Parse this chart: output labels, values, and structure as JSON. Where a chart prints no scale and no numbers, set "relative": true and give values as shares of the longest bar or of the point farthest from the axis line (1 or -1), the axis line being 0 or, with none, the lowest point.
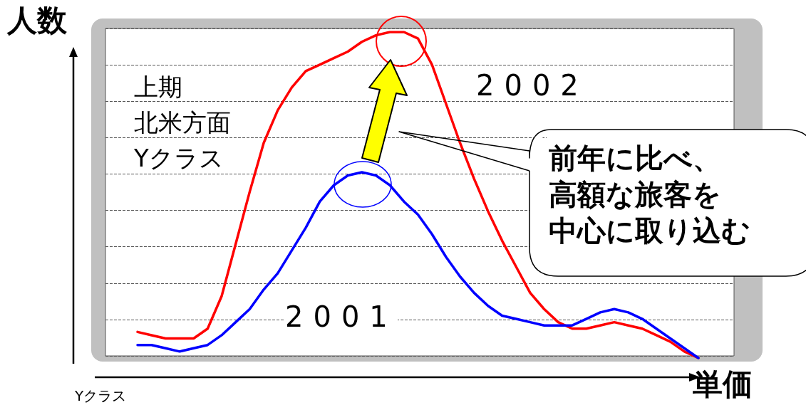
{
  "chart_data": {
    "type": "line",
    "relative": true,
    "xlabel": "単価",
    "ylabel": "人数",
    "grid": "y",
    "marker": "none",
    "line_style": "solid",
    "categories": [
      null,
      null,
      null,
      null,
      null,
      null,
      null,
      null,
      null,
      null,
      null,
      null,
      null,
      null,
      null,
      null,
      null,
      null,
      null,
      null,
      null,
      null,
      null,
      null,
      null,
      null,
      null,
      null,
      null,
      null,
      null,
      null,
      null,
      null,
      null,
      null,
      null,
      null,
      null,
      null,
      null
    ],
    "series": [
      {
        "name": "2002",
        "color": "#ff0000",
        "values": [
          0.08,
          0.07,
          0.06,
          0.06,
          0.06,
          0.09,
          0.19,
          0.35,
          0.51,
          0.66,
          0.76,
          0.83,
          0.88,
          0.9,
          0.92,
          0.94,
          0.97,
          0.99,
          1,
          1,
          0.98,
          0.9,
          0.78,
          0.66,
          0.55,
          0.45,
          0.36,
          0.28,
          0.2,
          0.15,
          0.11,
          0.09,
          0.09,
          0.1,
          0.11,
          0.1,
          0.09,
          0.07,
          0.05,
          0.02,
          0
        ]
      },
      {
        "name": "2001",
        "color": "#0000ff",
        "values": [
          0.04,
          0.04,
          0.03,
          0.02,
          0.03,
          0.04,
          0.07,
          0.11,
          0.15,
          0.21,
          0.26,
          0.33,
          0.4,
          0.48,
          0.53,
          0.56,
          0.57,
          0.56,
          0.53,
          0.48,
          0.44,
          0.38,
          0.31,
          0.25,
          0.2,
          0.16,
          0.13,
          0.12,
          0.11,
          0.1,
          0.1,
          0.1,
          0.12,
          0.14,
          0.15,
          0.14,
          0.12,
          0.09,
          0.06,
          0.03,
          0
        ]
      }
    ],
    "annotations": [
      "上期",
      "北米方面",
      "Yクラス",
      "前年に比べ、",
      "高額な旅客を",
      "中心に取り込む",
      "Yクラス"
    ]
  }
}
